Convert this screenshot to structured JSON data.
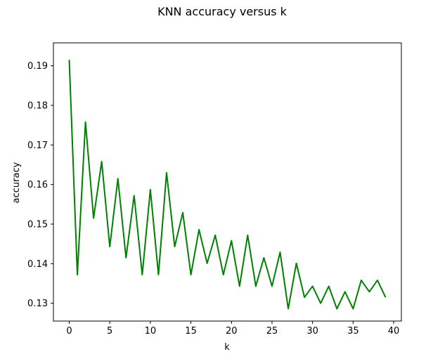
{
  "chart_data": {
    "type": "line",
    "title": "KNN accuracy versus k",
    "xlabel": "k",
    "ylabel": "accuracy",
    "xlim": [
      -1.95,
      40.95
    ],
    "ylim": [
      0.1255,
      0.1958
    ],
    "xticks": [
      0,
      5,
      10,
      15,
      20,
      25,
      30,
      35,
      40
    ],
    "yticks": [
      0.13,
      0.14,
      0.15,
      0.16,
      0.17,
      0.18,
      0.19
    ],
    "grid": false,
    "legend": "none",
    "series": [
      {
        "color": "#008000",
        "x": [
          0,
          1,
          2,
          3,
          4,
          5,
          6,
          7,
          8,
          9,
          10,
          11,
          12,
          13,
          14,
          15,
          16,
          17,
          18,
          19,
          20,
          21,
          22,
          23,
          24,
          25,
          26,
          27,
          28,
          29,
          30,
          31,
          32,
          33,
          34,
          35,
          36,
          37,
          38,
          39
        ],
        "y": [
          0.1915,
          0.1372,
          0.1758,
          0.1515,
          0.1658,
          0.1443,
          0.1615,
          0.1415,
          0.1572,
          0.1372,
          0.1587,
          0.1372,
          0.163,
          0.1443,
          0.1529,
          0.1372,
          0.1486,
          0.1401,
          0.1472,
          0.1372,
          0.1458,
          0.1343,
          0.1472,
          0.1343,
          0.1415,
          0.1343,
          0.1429,
          0.1286,
          0.1401,
          0.1315,
          0.1343,
          0.13,
          0.1343,
          0.1286,
          0.1329,
          0.1286,
          0.1358,
          0.1329,
          0.1358,
          0.1315
        ]
      }
    ]
  }
}
